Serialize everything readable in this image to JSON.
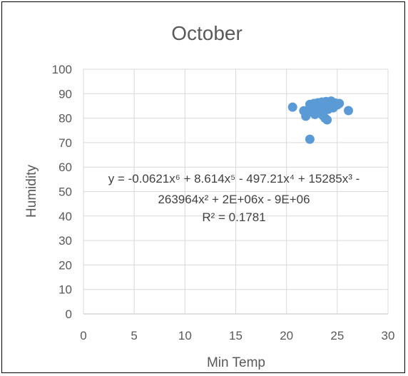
{
  "chart_data": {
    "type": "scatter",
    "title": "October",
    "xlabel": "Min Temp",
    "ylabel": "Humidity",
    "xlim": [
      0,
      30
    ],
    "ylim": [
      0,
      100
    ],
    "x_ticks": [
      0,
      5,
      10,
      15,
      20,
      25,
      30
    ],
    "y_ticks": [
      0,
      10,
      20,
      30,
      40,
      50,
      60,
      70,
      80,
      90,
      100
    ],
    "grid": true,
    "legend": "none",
    "marker_color": "#5B9BD5",
    "trendline_color": "#5B9BD5",
    "equation_lines": [
      "y = -0.0621x⁶ + 8.614x⁵ - 497.21x⁴ + 15285x³ -",
      "263964x² + 2E+06x - 9E+06",
      "R² = 0.1781"
    ],
    "points": [
      {
        "x": 20.6,
        "y": 84.5
      },
      {
        "x": 21.7,
        "y": 83.0
      },
      {
        "x": 21.9,
        "y": 80.8
      },
      {
        "x": 22.1,
        "y": 82.2
      },
      {
        "x": 22.3,
        "y": 85.6
      },
      {
        "x": 22.3,
        "y": 71.4
      },
      {
        "x": 22.5,
        "y": 84.0
      },
      {
        "x": 22.6,
        "y": 82.8
      },
      {
        "x": 22.7,
        "y": 86.0
      },
      {
        "x": 22.8,
        "y": 81.5
      },
      {
        "x": 22.9,
        "y": 84.6
      },
      {
        "x": 23.0,
        "y": 83.2
      },
      {
        "x": 23.1,
        "y": 86.3
      },
      {
        "x": 23.2,
        "y": 82.4
      },
      {
        "x": 23.3,
        "y": 85.1
      },
      {
        "x": 23.4,
        "y": 83.8
      },
      {
        "x": 23.5,
        "y": 86.6
      },
      {
        "x": 23.6,
        "y": 81.0
      },
      {
        "x": 23.7,
        "y": 84.4
      },
      {
        "x": 23.8,
        "y": 80.0
      },
      {
        "x": 23.9,
        "y": 86.8
      },
      {
        "x": 24.0,
        "y": 79.3
      },
      {
        "x": 24.0,
        "y": 85.3
      },
      {
        "x": 24.1,
        "y": 83.6
      },
      {
        "x": 24.2,
        "y": 86.4
      },
      {
        "x": 24.3,
        "y": 84.8
      },
      {
        "x": 24.4,
        "y": 87.0
      },
      {
        "x": 24.5,
        "y": 85.7
      },
      {
        "x": 24.6,
        "y": 84.2
      },
      {
        "x": 24.8,
        "y": 86.2
      },
      {
        "x": 25.0,
        "y": 85.4
      },
      {
        "x": 25.2,
        "y": 86.0
      },
      {
        "x": 26.1,
        "y": 83.1
      }
    ]
  }
}
